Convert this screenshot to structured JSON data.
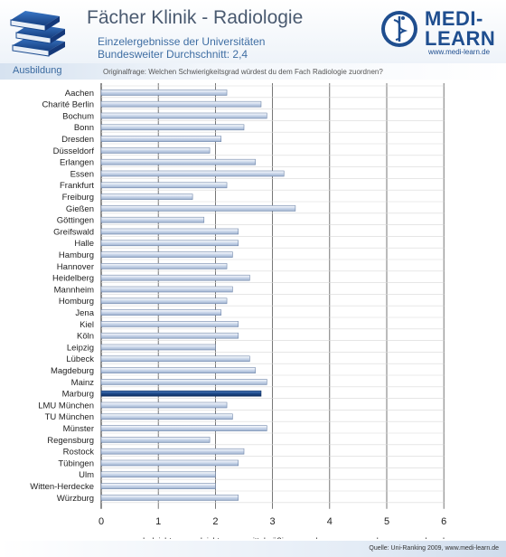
{
  "header": {
    "title": "Fächer Klinik - Radiologie",
    "subtitle_line1": "Einzelergebnisse der Universitäten",
    "subtitle_line2": "Bundesweiter Durchschnitt: 2,4"
  },
  "logo": {
    "line1": "MEDI-",
    "line2": "LEARN",
    "url": "www.medi-learn.de"
  },
  "section": {
    "label": "Ausbildung"
  },
  "question": "Originalfrage: Welchen Schwierigkeitsgrad würdest du dem Fach Radiologie zuordnen?",
  "footer": "Quelle: Uni-Ranking 2009, www.medi-learn.de",
  "colors": {
    "bar": "#c9d6ea",
    "highlight": "#1e4a8a"
  },
  "chart_data": {
    "type": "bar",
    "orientation": "horizontal",
    "categories": [
      "Aachen",
      "Charité Berlin",
      "Bochum",
      "Bonn",
      "Dresden",
      "Düsseldorf",
      "Erlangen",
      "Essen",
      "Frankfurt",
      "Freiburg",
      "Gießen",
      "Göttingen",
      "Greifswald",
      "Halle",
      "Hamburg",
      "Hannover",
      "Heidelberg",
      "Mannheim",
      "Homburg",
      "Jena",
      "Kiel",
      "Köln",
      "Leipzig",
      "Lübeck",
      "Magdeburg",
      "Mainz",
      "Marburg",
      "LMU München",
      "TU München",
      "Münster",
      "Regensburg",
      "Rostock",
      "Tübingen",
      "Ulm",
      "Witten-Herdecke",
      "Würzburg"
    ],
    "values": [
      2.2,
      2.8,
      2.9,
      2.5,
      2.1,
      1.9,
      2.7,
      3.2,
      2.2,
      1.6,
      3.4,
      1.8,
      2.4,
      2.4,
      2.3,
      2.2,
      2.6,
      2.3,
      2.2,
      2.1,
      2.4,
      2.4,
      2.0,
      2.6,
      2.7,
      2.9,
      2.8,
      2.2,
      2.3,
      2.9,
      1.9,
      2.5,
      2.4,
      2.0,
      2.0,
      2.4
    ],
    "highlight": "Marburg",
    "xlim": [
      0,
      6
    ],
    "xticks": [
      "0",
      "1",
      "2",
      "3",
      "4",
      "5",
      "6"
    ],
    "rating_labels": [
      "sehr leicht",
      "leicht",
      "mittelmäßig",
      "schwerer",
      "schwer",
      "sehr schwer"
    ],
    "grid": true
  }
}
